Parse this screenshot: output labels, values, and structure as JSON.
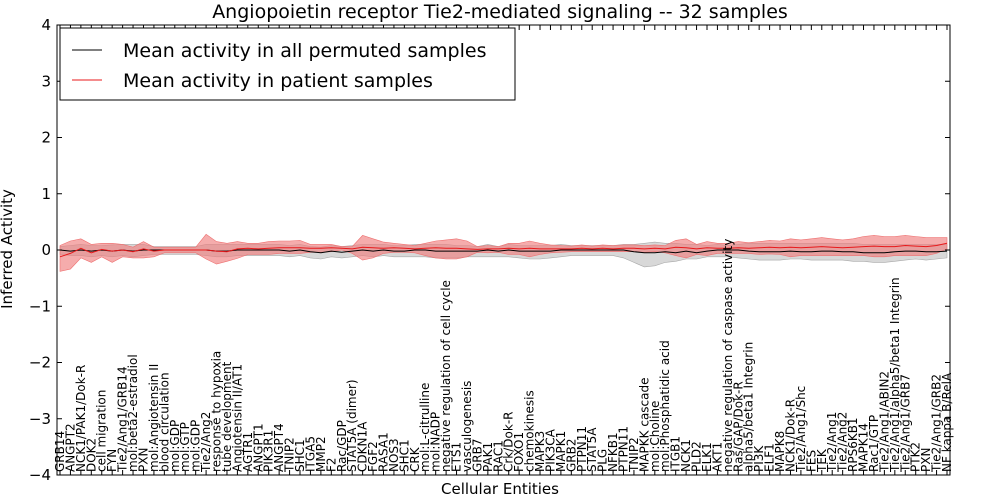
{
  "chart_data": {
    "type": "line",
    "title": "Angiopoietin receptor Tie2-mediated signaling -- 32 samples",
    "xlabel": "Cellular Entities",
    "ylabel": "Inferred Activity",
    "ylim": [
      -4,
      4
    ],
    "yticks": [
      "4",
      "3",
      "2",
      "1",
      "0",
      "−1",
      "−2",
      "−3",
      "−4"
    ],
    "grid": false,
    "legend_position": "top-left",
    "legend": [
      "Mean activity in all permuted samples",
      "Mean activity in patient samples"
    ],
    "colors": {
      "permuted": "#000000",
      "patient": "#e8191b",
      "patient_band": "#f08080",
      "permuted_band": "#c8c8c8"
    },
    "categories": [
      "GRB14",
      "ANGPT2",
      "NCK1/PAK1/Dok-R",
      "DOK2",
      "cell migration",
      "FYN",
      "Tie2/Ang1/GRB14",
      "mol:beta2-estradiol",
      "PXN",
      "mol:Angiotensin II",
      "blood circulation",
      "mol:GDP",
      "mol:GTP",
      "mol:GDP",
      "Tie2/Ang2",
      "response to hypoxia",
      "tube development",
      "Angiotensin II/AT1",
      "AGTR1",
      "ANGPT1",
      "PIK3R1",
      "ANGPT4",
      "TNIP2",
      "SHC1",
      "ITGA5",
      "MMP2",
      "F2",
      "Rac/GDP",
      "STAT5A (dimer)",
      "CDKN1A",
      "FGF2",
      "RASA1",
      "NOS3",
      "SHC1",
      "CRK",
      "mol:L-citrulline",
      "mol:NADP",
      "negative regulation of cell cycle",
      "ETS1",
      "vasculogenesis",
      "GRB7",
      "PAK1",
      "RAC1",
      "Crk/Dok-R",
      "FOXO1",
      "chemokinesis",
      "MAPK3",
      "PIK3CA",
      "MAPK1",
      "GRB2",
      "PTPN11",
      "STAT5A",
      "PLG",
      "NFKB1",
      "PTPN11",
      "TNIP2",
      "MAPKK cascade",
      "mol:Choline",
      "mol:Phosphatidic acid",
      "ITGB1",
      "NCK1",
      "PLD2",
      "ELK1",
      "AKT1",
      "negative regulation of caspase activity",
      "Ras/GAP/Dok-R",
      "alpha5/beta1 Integrin",
      "PI3K",
      "ELF1",
      "MAPK8",
      "NCK1/Dok-R",
      "Tie2/Ang1/Shc",
      "FES",
      "TEK",
      "Tie2/Ang1",
      "Tie2/Ang2",
      "RPS6KB1",
      "MAPK14",
      "Rac1/GTP",
      "Tie2/Ang1/ABIN2",
      "Tie2/Ang1/alpha5/beta1 Integrin",
      "Tie2/Ang1/GRB7",
      "PTK2",
      "PXN",
      "Tie2/Ang1/GRB2",
      "NF kappa B/RelA"
    ],
    "series": [
      {
        "name": "Mean activity in patient samples",
        "values": [
          -0.12,
          -0.06,
          0.03,
          -0.05,
          0.01,
          -0.02,
          0.0,
          -0.03,
          0.02,
          -0.02,
          0.0,
          0.0,
          0.0,
          0.0,
          0.0,
          -0.02,
          -0.03,
          0.02,
          0.03,
          0.02,
          0.03,
          0.04,
          0.04,
          0.04,
          0.03,
          0.03,
          0.04,
          0.03,
          0.02,
          0.05,
          0.04,
          0.03,
          0.04,
          0.03,
          0.02,
          0.03,
          0.04,
          0.03,
          0.03,
          0.02,
          0.01,
          0.02,
          0.02,
          0.03,
          0.02,
          0.03,
          0.02,
          0.02,
          0.02,
          0.02,
          0.03,
          0.02,
          0.03,
          0.02,
          0.03,
          0.03,
          0.02,
          0.03,
          0.02,
          0.05,
          0.04,
          0.02,
          0.04,
          0.03,
          0.03,
          0.04,
          0.03,
          0.04,
          0.05,
          0.04,
          0.05,
          0.04,
          0.05,
          0.06,
          0.05,
          0.04,
          0.05,
          0.06,
          0.07,
          0.06,
          0.06,
          0.08,
          0.07,
          0.06,
          0.08,
          0.12
        ],
        "upper": [
          0.08,
          0.16,
          0.2,
          0.1,
          0.12,
          0.12,
          0.1,
          0.05,
          0.15,
          0.05,
          0.05,
          0.05,
          0.05,
          0.05,
          0.28,
          0.15,
          0.12,
          0.15,
          0.12,
          0.12,
          0.15,
          0.16,
          0.16,
          0.17,
          0.1,
          0.1,
          0.1,
          0.06,
          0.06,
          0.26,
          0.2,
          0.14,
          0.12,
          0.1,
          0.08,
          0.12,
          0.16,
          0.18,
          0.2,
          0.16,
          0.06,
          0.08,
          0.06,
          0.12,
          0.12,
          0.16,
          0.12,
          0.09,
          0.08,
          0.07,
          0.09,
          0.07,
          0.09,
          0.08,
          0.09,
          0.09,
          0.08,
          0.09,
          0.08,
          0.17,
          0.2,
          0.1,
          0.15,
          0.12,
          0.12,
          0.15,
          0.13,
          0.15,
          0.17,
          0.16,
          0.2,
          0.18,
          0.2,
          0.22,
          0.2,
          0.18,
          0.2,
          0.24,
          0.26,
          0.24,
          0.24,
          0.26,
          0.24,
          0.22,
          0.22,
          0.22
        ],
        "lower": [
          -0.38,
          -0.34,
          -0.14,
          -0.22,
          -0.12,
          -0.22,
          -0.12,
          -0.14,
          -0.14,
          -0.12,
          -0.05,
          -0.05,
          -0.05,
          -0.05,
          -0.16,
          -0.25,
          -0.2,
          -0.15,
          -0.08,
          -0.08,
          -0.08,
          -0.06,
          -0.06,
          -0.06,
          -0.04,
          -0.04,
          -0.03,
          0.0,
          -0.06,
          -0.18,
          -0.14,
          -0.06,
          -0.04,
          -0.04,
          -0.05,
          -0.1,
          -0.14,
          -0.16,
          -0.16,
          -0.12,
          -0.04,
          -0.05,
          -0.04,
          -0.08,
          -0.08,
          -0.12,
          -0.08,
          -0.05,
          -0.04,
          -0.03,
          -0.03,
          -0.03,
          -0.03,
          -0.03,
          -0.03,
          -0.03,
          -0.04,
          -0.03,
          -0.05,
          -0.1,
          -0.14,
          -0.08,
          -0.1,
          -0.06,
          -0.06,
          -0.06,
          -0.06,
          -0.08,
          -0.07,
          -0.08,
          -0.12,
          -0.1,
          -0.1,
          -0.1,
          -0.1,
          -0.1,
          -0.1,
          -0.1,
          -0.12,
          -0.12,
          -0.1,
          -0.1,
          -0.1,
          -0.1,
          -0.06,
          0.02
        ]
      },
      {
        "name": "Mean activity in all permuted samples",
        "values": [
          0.0,
          -0.02,
          0.0,
          -0.02,
          0.0,
          -0.02,
          0.0,
          -0.02,
          0.0,
          0.0,
          0.0,
          0.0,
          0.0,
          0.0,
          0.0,
          -0.02,
          -0.02,
          0.0,
          0.0,
          0.0,
          0.0,
          0.0,
          -0.02,
          0.0,
          -0.03,
          -0.05,
          -0.02,
          -0.04,
          -0.02,
          0.0,
          -0.02,
          0.0,
          -0.02,
          -0.02,
          0.0,
          0.0,
          -0.02,
          -0.02,
          -0.02,
          -0.02,
          -0.02,
          0.0,
          -0.02,
          0.0,
          -0.02,
          -0.02,
          -0.02,
          -0.02,
          0.0,
          0.0,
          0.0,
          0.0,
          0.0,
          0.0,
          0.0,
          -0.03,
          -0.05,
          -0.05,
          -0.03,
          -0.05,
          -0.02,
          -0.05,
          -0.02,
          0.0,
          0.0,
          0.0,
          -0.02,
          -0.03,
          -0.03,
          -0.03,
          -0.02,
          -0.03,
          -0.03,
          -0.02,
          -0.02,
          -0.03,
          -0.03,
          -0.05,
          -0.05,
          -0.05,
          -0.03,
          -0.02,
          -0.02,
          -0.03,
          -0.03,
          -0.02
        ],
        "upper": [
          0.06,
          0.08,
          0.1,
          0.08,
          0.08,
          0.09,
          0.1,
          0.1,
          0.1,
          0.06,
          0.06,
          0.06,
          0.06,
          0.06,
          0.1,
          0.1,
          0.1,
          0.1,
          0.1,
          0.1,
          0.1,
          0.1,
          0.08,
          0.1,
          0.06,
          0.05,
          0.08,
          0.06,
          0.08,
          0.1,
          0.1,
          0.1,
          0.08,
          0.08,
          0.1,
          0.1,
          0.1,
          0.1,
          0.08,
          0.08,
          0.06,
          0.1,
          0.06,
          0.1,
          0.08,
          0.08,
          0.08,
          0.08,
          0.1,
          0.08,
          0.08,
          0.08,
          0.08,
          0.08,
          0.1,
          0.1,
          0.12,
          0.14,
          0.12,
          0.12,
          0.1,
          0.1,
          0.08,
          0.1,
          0.08,
          0.1,
          0.12,
          0.12,
          0.12,
          0.12,
          0.12,
          0.12,
          0.12,
          0.12,
          0.12,
          0.12,
          0.12,
          0.1,
          0.1,
          0.1,
          0.1,
          0.1,
          0.1,
          0.1,
          0.1,
          0.1
        ],
        "lower": [
          -0.08,
          -0.1,
          -0.1,
          -0.12,
          -0.1,
          -0.12,
          -0.1,
          -0.12,
          -0.1,
          -0.08,
          -0.08,
          -0.08,
          -0.08,
          -0.08,
          -0.1,
          -0.12,
          -0.12,
          -0.1,
          -0.1,
          -0.1,
          -0.1,
          -0.1,
          -0.12,
          -0.1,
          -0.14,
          -0.16,
          -0.12,
          -0.14,
          -0.12,
          -0.1,
          -0.12,
          -0.1,
          -0.12,
          -0.12,
          -0.12,
          -0.12,
          -0.14,
          -0.14,
          -0.14,
          -0.12,
          -0.12,
          -0.12,
          -0.12,
          -0.12,
          -0.14,
          -0.16,
          -0.16,
          -0.14,
          -0.12,
          -0.1,
          -0.1,
          -0.1,
          -0.1,
          -0.1,
          -0.14,
          -0.22,
          -0.3,
          -0.28,
          -0.22,
          -0.2,
          -0.16,
          -0.16,
          -0.12,
          -0.12,
          -0.12,
          -0.14,
          -0.16,
          -0.18,
          -0.18,
          -0.18,
          -0.16,
          -0.16,
          -0.18,
          -0.18,
          -0.18,
          -0.18,
          -0.2,
          -0.2,
          -0.22,
          -0.22,
          -0.2,
          -0.18,
          -0.16,
          -0.18,
          -0.16,
          -0.14
        ]
      }
    ]
  }
}
